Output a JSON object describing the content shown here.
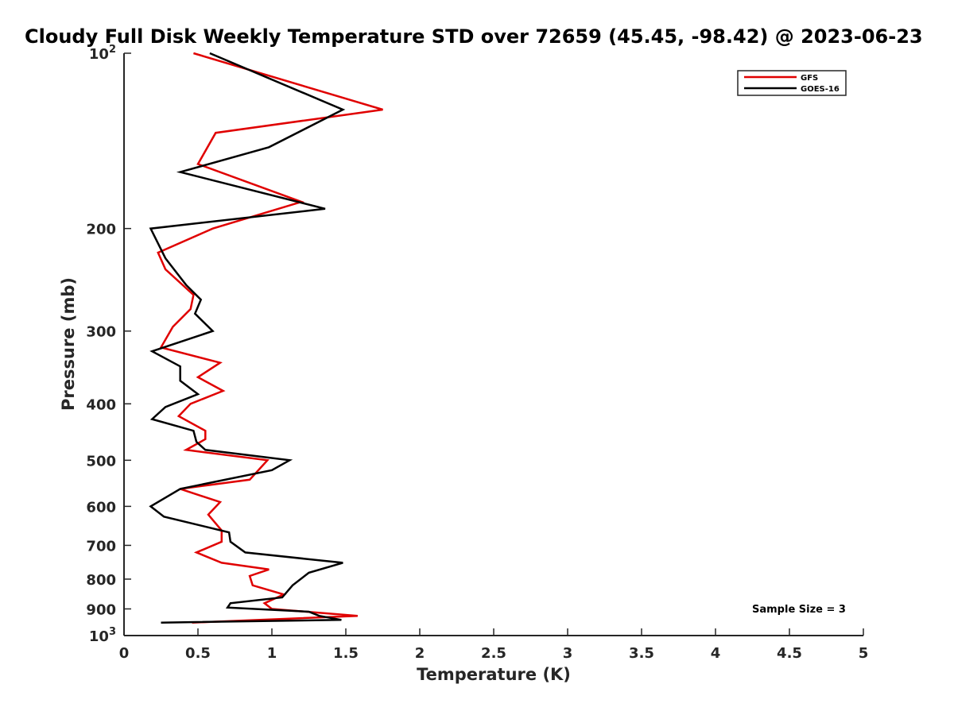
{
  "chart_data": {
    "type": "line",
    "title": "Cloudy Full Disk Weekly Temperature STD over 72659 (45.45, -98.42) @ 2023-06-23",
    "xlabel": "Temperature (K)",
    "ylabel": "Pressure (mb)",
    "xlim": [
      0,
      5
    ],
    "ylim": [
      1000,
      100
    ],
    "y_scale": "log",
    "y_reversed": true,
    "grid": false,
    "legend_position": "top-right",
    "x_ticks": [
      "0",
      "0.5",
      "1",
      "1.5",
      "2",
      "2.5",
      "3",
      "3.5",
      "4",
      "4.5",
      "5"
    ],
    "y_ticks": [
      {
        "value": 100,
        "base": "10",
        "exp": "2"
      },
      {
        "value": 200,
        "label": "200"
      },
      {
        "value": 300,
        "label": "300"
      },
      {
        "value": 400,
        "label": "400"
      },
      {
        "value": 500,
        "label": "500"
      },
      {
        "value": 600,
        "label": "600"
      },
      {
        "value": 700,
        "label": "700"
      },
      {
        "value": 800,
        "label": "800"
      },
      {
        "value": 900,
        "label": "900"
      },
      {
        "value": 1000,
        "base": "10",
        "exp": "3"
      }
    ],
    "annotation": "Sample Size = 3",
    "series": [
      {
        "name": "GFS",
        "color": "#e00000",
        "points": [
          [
            0.47,
            100
          ],
          [
            1.75,
            125
          ],
          [
            0.62,
            137
          ],
          [
            0.5,
            155
          ],
          [
            1.2,
            180
          ],
          [
            0.6,
            200
          ],
          [
            0.23,
            220
          ],
          [
            0.28,
            235
          ],
          [
            0.47,
            260
          ],
          [
            0.45,
            275
          ],
          [
            0.33,
            295
          ],
          [
            0.25,
            320
          ],
          [
            0.65,
            340
          ],
          [
            0.5,
            360
          ],
          [
            0.67,
            380
          ],
          [
            0.45,
            400
          ],
          [
            0.37,
            420
          ],
          [
            0.55,
            445
          ],
          [
            0.55,
            460
          ],
          [
            0.42,
            480
          ],
          [
            0.97,
            500
          ],
          [
            0.85,
            540
          ],
          [
            0.38,
            560
          ],
          [
            0.65,
            590
          ],
          [
            0.57,
            620
          ],
          [
            0.66,
            660
          ],
          [
            0.66,
            690
          ],
          [
            0.49,
            720
          ],
          [
            0.66,
            750
          ],
          [
            0.98,
            770
          ],
          [
            0.85,
            790
          ],
          [
            0.87,
            820
          ],
          [
            1.08,
            850
          ],
          [
            0.95,
            880
          ],
          [
            1.0,
            900
          ],
          [
            1.58,
            925
          ],
          [
            0.46,
            950
          ]
        ]
      },
      {
        "name": "GOES-16",
        "color": "#000000",
        "points": [
          [
            0.58,
            100
          ],
          [
            1.48,
            125
          ],
          [
            0.98,
            145
          ],
          [
            0.38,
            160
          ],
          [
            1.36,
            185
          ],
          [
            0.18,
            200
          ],
          [
            0.28,
            225
          ],
          [
            0.42,
            250
          ],
          [
            0.52,
            265
          ],
          [
            0.48,
            280
          ],
          [
            0.6,
            300
          ],
          [
            0.19,
            325
          ],
          [
            0.38,
            345
          ],
          [
            0.38,
            365
          ],
          [
            0.5,
            385
          ],
          [
            0.28,
            405
          ],
          [
            0.19,
            425
          ],
          [
            0.47,
            445
          ],
          [
            0.49,
            465
          ],
          [
            0.55,
            480
          ],
          [
            1.12,
            500
          ],
          [
            1.0,
            520
          ],
          [
            0.38,
            560
          ],
          [
            0.18,
            600
          ],
          [
            0.27,
            625
          ],
          [
            0.71,
            665
          ],
          [
            0.72,
            690
          ],
          [
            0.82,
            720
          ],
          [
            1.48,
            750
          ],
          [
            1.25,
            780
          ],
          [
            1.14,
            820
          ],
          [
            1.07,
            860
          ],
          [
            0.72,
            880
          ],
          [
            0.7,
            895
          ],
          [
            1.25,
            910
          ],
          [
            1.32,
            925
          ],
          [
            1.47,
            940
          ],
          [
            0.25,
            950
          ]
        ]
      }
    ]
  }
}
